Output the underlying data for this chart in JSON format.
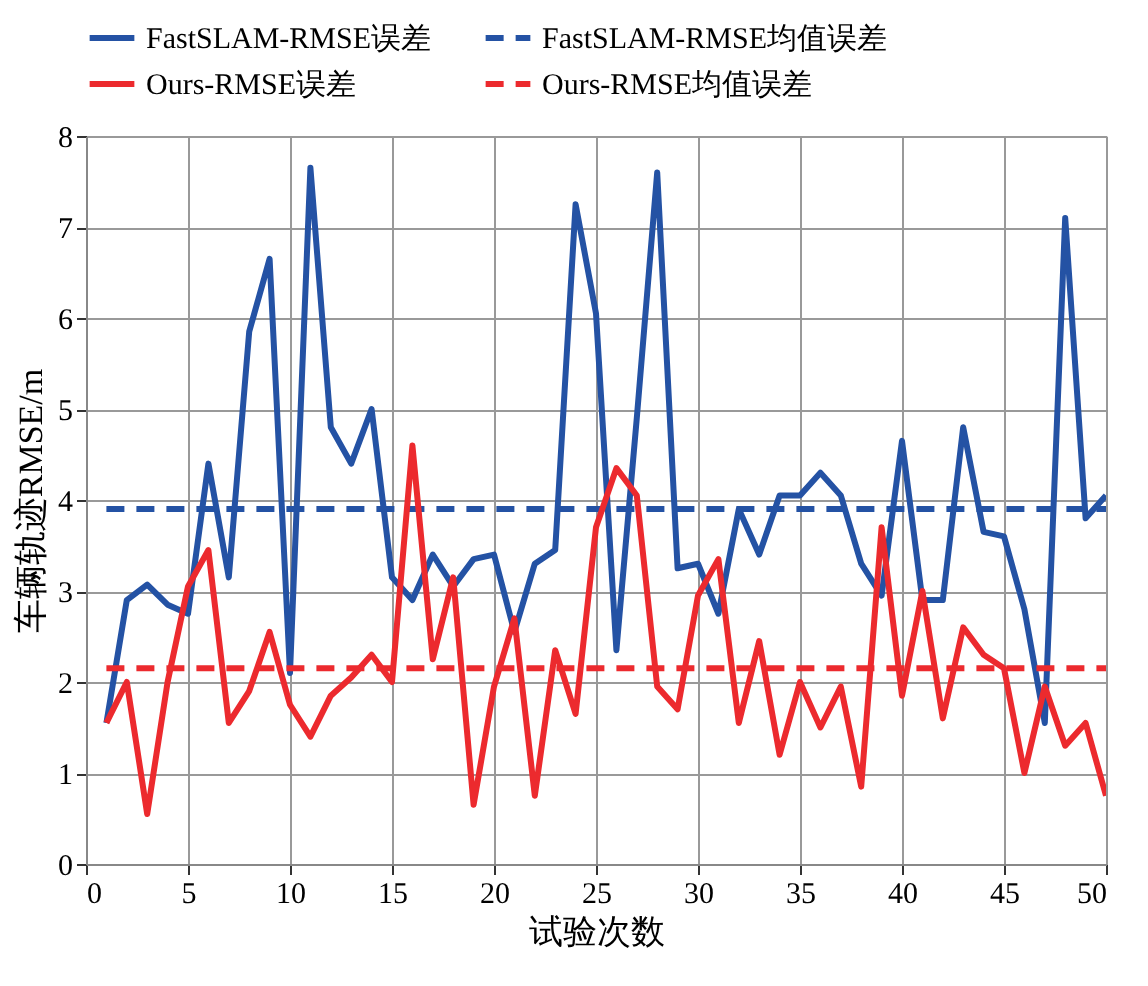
{
  "chart_data": {
    "type": "line",
    "xlabel": "试验次数",
    "ylabel": "车辆轨迹RMSE/m",
    "xlim": [
      0,
      50
    ],
    "xticks": [
      0,
      5,
      10,
      15,
      20,
      25,
      30,
      35,
      40,
      45,
      50
    ],
    "ylim": [
      0,
      8
    ],
    "yticks": [
      0,
      1,
      2,
      3,
      4,
      5,
      6,
      7,
      8
    ],
    "grid": true,
    "legend": "top",
    "line_style": "solid",
    "x": [
      1,
      2,
      3,
      4,
      5,
      6,
      7,
      8,
      9,
      10,
      11,
      12,
      13,
      14,
      15,
      16,
      17,
      18,
      19,
      20,
      21,
      22,
      23,
      24,
      25,
      26,
      27,
      28,
      29,
      30,
      31,
      32,
      33,
      34,
      35,
      36,
      37,
      38,
      39,
      40,
      41,
      42,
      43,
      44,
      45,
      46,
      47,
      48,
      49,
      50
    ],
    "series": [
      {
        "name": "FastSLAM-RMSE误差",
        "color": "#2452a4",
        "values": [
          1.55,
          2.9,
          3.07,
          2.85,
          2.75,
          4.4,
          3.15,
          5.85,
          6.65,
          2.1,
          7.65,
          4.8,
          4.4,
          5.0,
          3.15,
          2.9,
          3.4,
          3.05,
          3.35,
          3.4,
          2.55,
          3.3,
          3.45,
          7.25,
          6.05,
          2.35,
          4.9,
          7.6,
          3.25,
          3.3,
          2.75,
          3.9,
          3.4,
          4.05,
          4.05,
          4.3,
          4.05,
          3.3,
          2.95,
          4.65,
          2.9,
          2.9,
          4.8,
          3.65,
          3.6,
          2.8,
          1.55,
          7.1,
          3.8,
          4.05
        ]
      },
      {
        "name": "FastSLAM-RMSE均值误差",
        "color": "#2452a4",
        "line_style": "dashed",
        "values": [
          3.9,
          3.9,
          3.9,
          3.9,
          3.9,
          3.9,
          3.9,
          3.9,
          3.9,
          3.9,
          3.9,
          3.9,
          3.9,
          3.9,
          3.9,
          3.9,
          3.9,
          3.9,
          3.9,
          3.9,
          3.9,
          3.9,
          3.9,
          3.9,
          3.9,
          3.9,
          3.9,
          3.9,
          3.9,
          3.9,
          3.9,
          3.9,
          3.9,
          3.9,
          3.9,
          3.9,
          3.9,
          3.9,
          3.9,
          3.9,
          3.9,
          3.9,
          3.9,
          3.9,
          3.9,
          3.9,
          3.9,
          3.9,
          3.9,
          3.9
        ]
      },
      {
        "name": "Ours-RMSE误差",
        "color": "#ec2a2e",
        "values": [
          1.55,
          2.0,
          0.55,
          2.0,
          3.05,
          3.45,
          1.55,
          1.9,
          2.55,
          1.75,
          1.4,
          1.85,
          2.05,
          2.3,
          2.0,
          4.6,
          2.25,
          3.15,
          0.65,
          1.95,
          2.7,
          0.75,
          2.35,
          1.65,
          3.7,
          4.35,
          4.05,
          1.95,
          1.7,
          2.95,
          3.35,
          1.55,
          2.45,
          1.2,
          2.0,
          1.5,
          1.95,
          0.85,
          3.7,
          1.85,
          3.0,
          1.6,
          2.6,
          2.3,
          2.15,
          1.0,
          1.95,
          1.3,
          1.55,
          0.75
        ]
      },
      {
        "name": "Ours-RMSE均值误差",
        "color": "#ec2a2e",
        "line_style": "dashed",
        "values": [
          2.15,
          2.15,
          2.15,
          2.15,
          2.15,
          2.15,
          2.15,
          2.15,
          2.15,
          2.15,
          2.15,
          2.15,
          2.15,
          2.15,
          2.15,
          2.15,
          2.15,
          2.15,
          2.15,
          2.15,
          2.15,
          2.15,
          2.15,
          2.15,
          2.15,
          2.15,
          2.15,
          2.15,
          2.15,
          2.15,
          2.15,
          2.15,
          2.15,
          2.15,
          2.15,
          2.15,
          2.15,
          2.15,
          2.15,
          2.15,
          2.15,
          2.15,
          2.15,
          2.15,
          2.15,
          2.15,
          2.15,
          2.15,
          2.15,
          2.15
        ]
      }
    ]
  }
}
